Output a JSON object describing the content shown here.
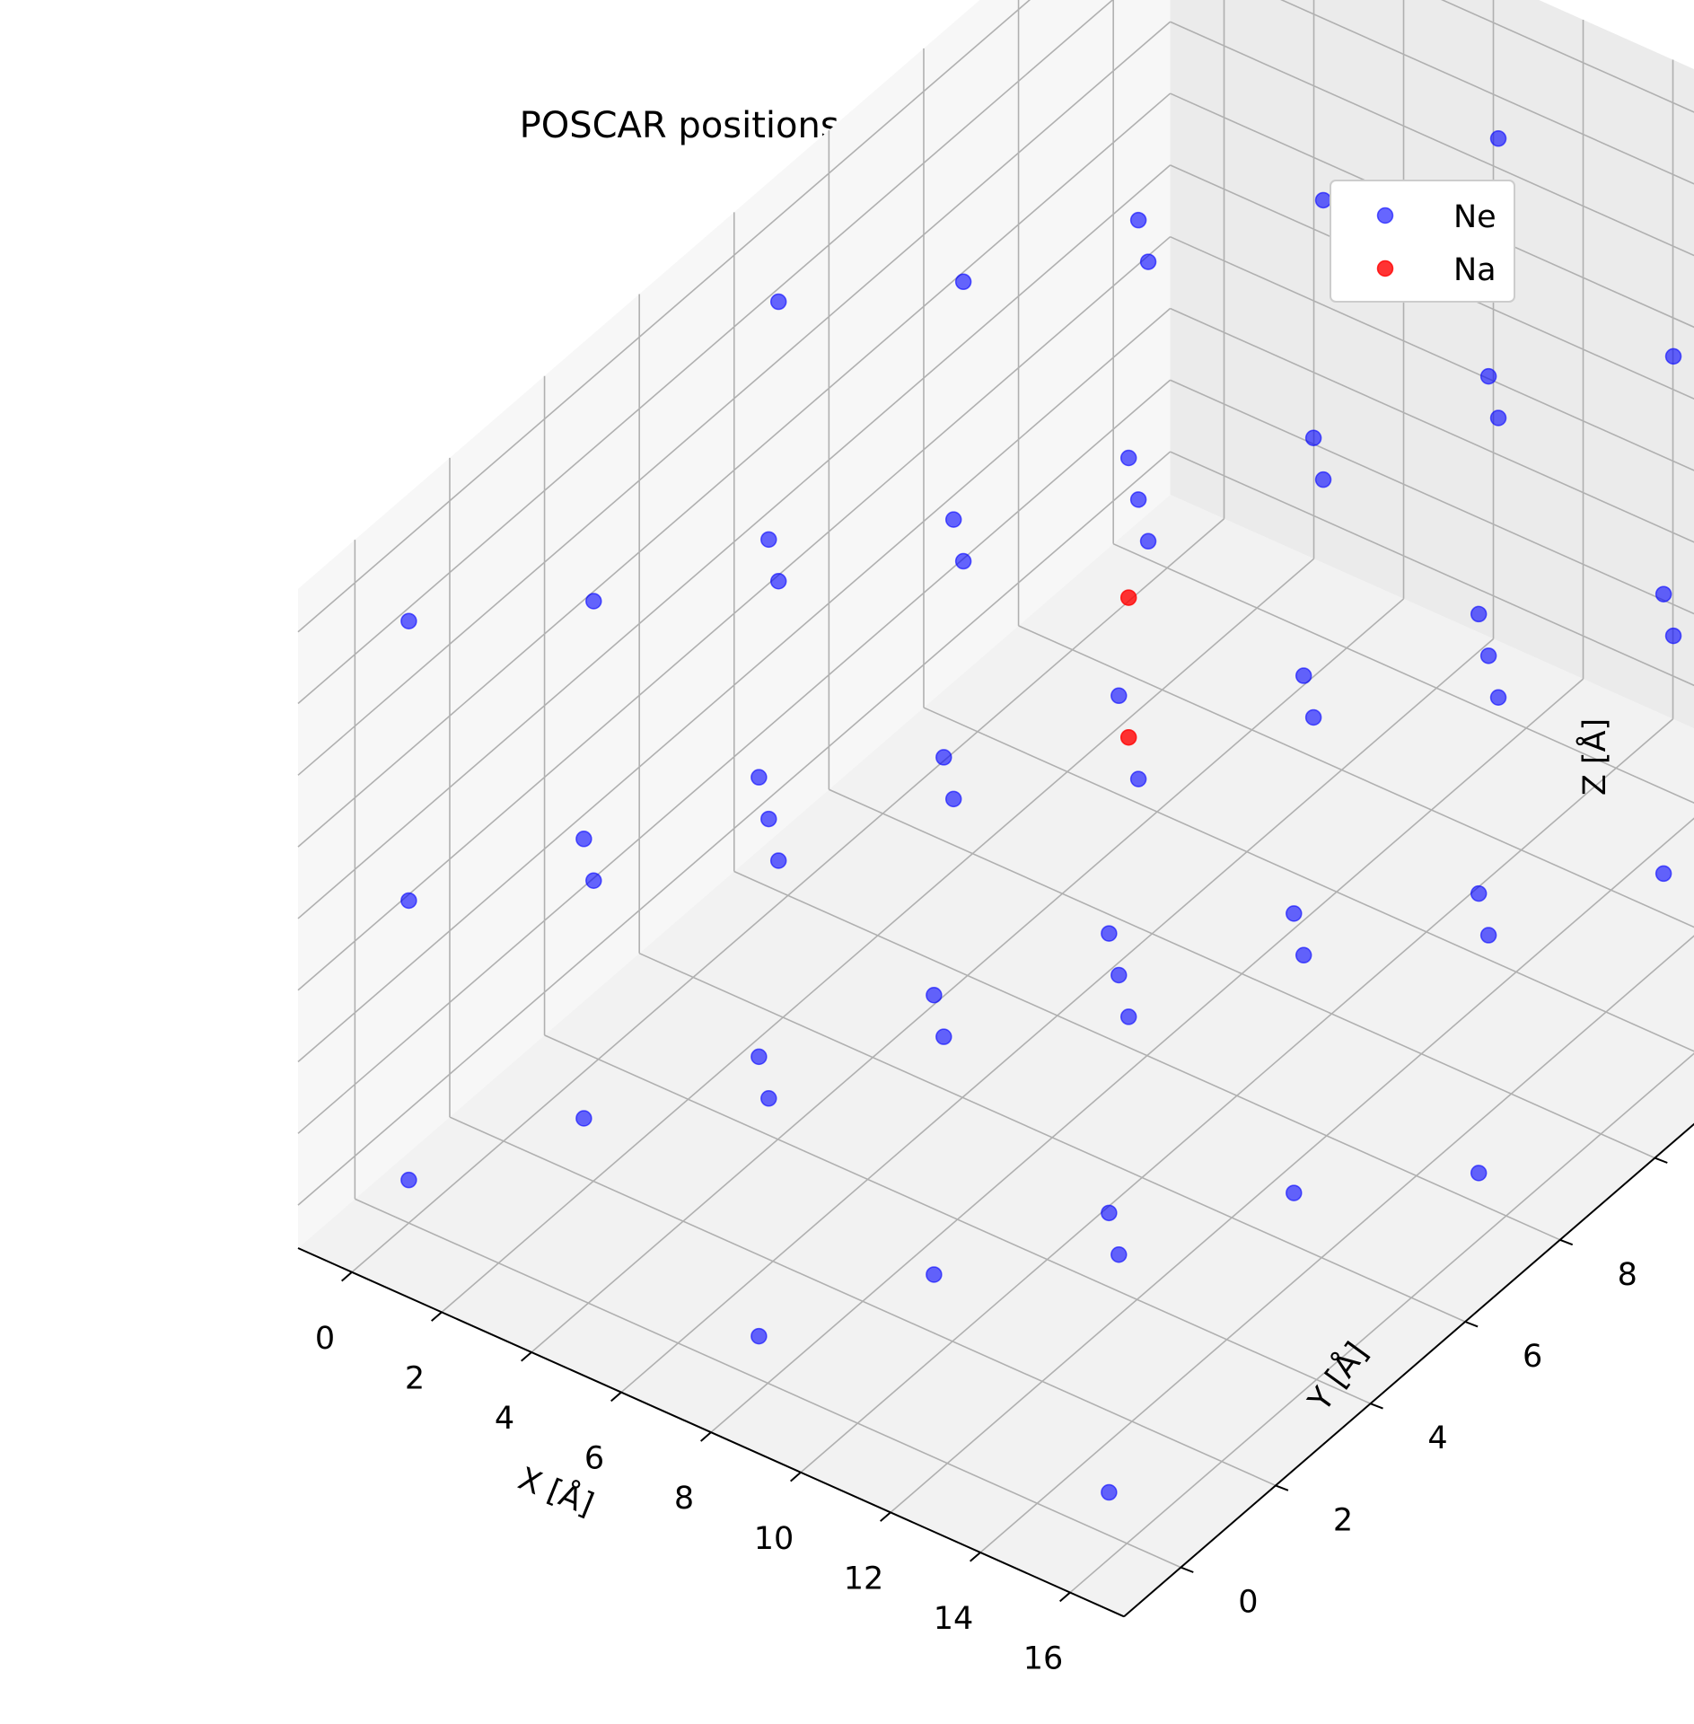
{
  "chart_data": {
    "type": "scatter",
    "title": "POSCAR positions after relaxation",
    "xlabel": "X [Å]",
    "ylabel": "Y [Å]",
    "zlabel": "Z [Å]",
    "xlim": [
      -1.2,
      17.2
    ],
    "ylim": [
      -1.2,
      17.2
    ],
    "zlim": [
      -1.2,
      17.2
    ],
    "xticks": [
      0,
      2,
      4,
      6,
      8,
      10,
      12,
      14,
      16
    ],
    "yticks": [
      0,
      2,
      4,
      6,
      8,
      10,
      12,
      14,
      16
    ],
    "zticks": [
      0,
      2,
      4,
      6,
      8,
      10,
      12,
      14,
      16
    ],
    "grid": true,
    "legend_position": "top-right",
    "lattice_values": [
      0,
      3.9,
      7.8,
      11.7,
      15.6
    ],
    "series": [
      {
        "name": "Ne",
        "color": "#0000ff",
        "opacity": 0.6,
        "points": "every fcc lattice site (x, y, z in lattice_values where the sum of lattice indices is even) except the two Na sites"
      },
      {
        "name": "Na",
        "color": "#ff0000",
        "opacity": 0.8,
        "points": [
          [
            7.8,
            7.8,
            7.8
          ],
          [
            7.8,
            7.8,
            11.7
          ]
        ]
      }
    ]
  }
}
